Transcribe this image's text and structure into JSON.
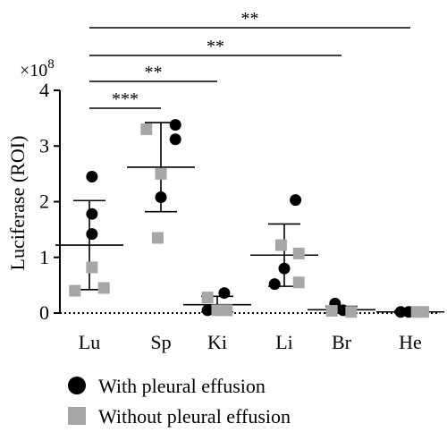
{
  "chart_data": {
    "type": "scatter",
    "ylabel": "Luciferase (ROI)",
    "y_multiplier": "×10",
    "y_exponent": "8",
    "ylim": [
      0,
      4
    ],
    "yticks": [
      0,
      1,
      2,
      3,
      4
    ],
    "categories": [
      "Lu",
      "Sp",
      "Ki",
      "Li",
      "Br",
      "He"
    ],
    "series": [
      {
        "name": "With pleural effusion",
        "marker": "circle",
        "color": "#000000",
        "points": [
          {
            "cat": 0,
            "offset": 0.08,
            "y": 2.45
          },
          {
            "cat": 0,
            "offset": 0.08,
            "y": 1.78
          },
          {
            "cat": 0,
            "offset": 0.08,
            "y": 1.42
          },
          {
            "cat": 1,
            "offset": 0.45,
            "y": 3.38
          },
          {
            "cat": 1,
            "offset": 0.45,
            "y": 3.12
          },
          {
            "cat": 1,
            "offset": 0.0,
            "y": 2.08
          },
          {
            "cat": 2,
            "offset": 0.22,
            "y": 0.36
          },
          {
            "cat": 2,
            "offset": -0.3,
            "y": 0.05
          },
          {
            "cat": 3,
            "offset": 0.35,
            "y": 2.03
          },
          {
            "cat": 3,
            "offset": 0.0,
            "y": 0.8
          },
          {
            "cat": 3,
            "offset": -0.3,
            "y": 0.52
          },
          {
            "cat": 4,
            "offset": -0.2,
            "y": 0.17
          },
          {
            "cat": 4,
            "offset": 0.05,
            "y": 0.05
          },
          {
            "cat": 5,
            "offset": -0.3,
            "y": 0.02
          },
          {
            "cat": 5,
            "offset": -0.05,
            "y": 0.02
          }
        ]
      },
      {
        "name": "Without pleural effusion",
        "marker": "square",
        "color": "#a6a6a6",
        "points": [
          {
            "cat": 0,
            "offset": 0.08,
            "y": 0.82
          },
          {
            "cat": 0,
            "offset": -0.45,
            "y": 0.4
          },
          {
            "cat": 0,
            "offset": 0.45,
            "y": 0.45
          },
          {
            "cat": 1,
            "offset": -0.45,
            "y": 3.3
          },
          {
            "cat": 1,
            "offset": 0.0,
            "y": 2.5
          },
          {
            "cat": 1,
            "offset": -0.1,
            "y": 1.35
          },
          {
            "cat": 2,
            "offset": -0.3,
            "y": 0.28
          },
          {
            "cat": 2,
            "offset": 0.0,
            "y": 0.05
          },
          {
            "cat": 2,
            "offset": 0.3,
            "y": 0.05
          },
          {
            "cat": 3,
            "offset": -0.1,
            "y": 1.22
          },
          {
            "cat": 3,
            "offset": 0.45,
            "y": 1.07
          },
          {
            "cat": 3,
            "offset": 0.45,
            "y": 0.55
          },
          {
            "cat": 4,
            "offset": -0.3,
            "y": 0.04
          },
          {
            "cat": 4,
            "offset": 0.3,
            "y": 0.02
          },
          {
            "cat": 5,
            "offset": 0.2,
            "y": 0.02
          },
          {
            "cat": 5,
            "offset": 0.4,
            "y": 0.02
          }
        ]
      }
    ],
    "summary": [
      {
        "cat": 0,
        "mean": 1.22,
        "low": 0.42,
        "high": 2.02
      },
      {
        "cat": 1,
        "mean": 2.62,
        "low": 1.82,
        "high": 3.42
      },
      {
        "cat": 2,
        "mean": 0.15,
        "low": 0.02,
        "high": 0.3
      },
      {
        "cat": 3,
        "mean": 1.04,
        "low": 0.48,
        "high": 1.6
      },
      {
        "cat": 4,
        "mean": 0.06,
        "low": 0.0,
        "high": 0.12
      },
      {
        "cat": 5,
        "mean": 0.02,
        "low": 0.0,
        "high": 0.04
      }
    ],
    "significance": [
      {
        "from": 0,
        "to": 1,
        "label": "***"
      },
      {
        "from": 0,
        "to": 2,
        "label": "**"
      },
      {
        "from": 0,
        "to": 4,
        "label": "**"
      },
      {
        "from": 0,
        "to": 5,
        "label": "**"
      }
    ]
  }
}
